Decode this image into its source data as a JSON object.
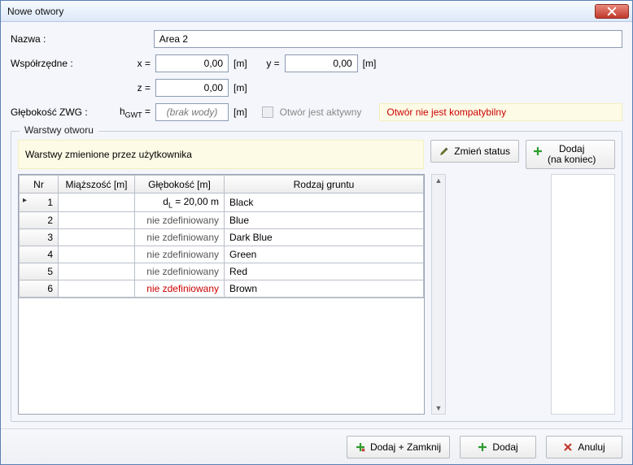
{
  "window": {
    "title": "Nowe otwory"
  },
  "labels": {
    "name": "Nazwa :",
    "coords": "Współrzędne :",
    "x_eq": "x =",
    "y_eq": "y =",
    "z_eq": "z =",
    "m": "[m]",
    "depth_zwg": "Głębokość ZWG :",
    "hgwt_eq_prefix": "h",
    "hgwt_eq_sub": "GWT",
    "hgwt_eq_suffix": " =",
    "no_water": "(brak wody)",
    "active": "Otwór jest aktywny",
    "incompat": "Otwór nie jest kompatybilny",
    "layers_legend": "Warstwy otworu",
    "user_changed": "Warstwy zmienione przez użytkownika",
    "change_status": "Zmień status",
    "add_end_1": "Dodaj",
    "add_end_2": "(na koniec)"
  },
  "inputs": {
    "name": "Area 2",
    "x": "0,00",
    "y": "0,00",
    "z": "0,00"
  },
  "table": {
    "columns": {
      "nr": "Nr",
      "thickness": "Miąższość [m]",
      "depth": "Głębokość [m]",
      "soil": "Rodzaj gruntu"
    },
    "widths": {
      "nr": 48,
      "thickness": 94,
      "depth": 110,
      "soil": 230
    },
    "undef": "nie zdefiniowany",
    "row1_depth_prefix": "d",
    "row1_depth_sub": "L",
    "row1_depth_suffix": " = 20,00 m",
    "rows": [
      {
        "nr": "1",
        "depth_mode": "dl",
        "soil": "Black",
        "selected": true
      },
      {
        "nr": "2",
        "depth_mode": "undef",
        "soil": "Blue"
      },
      {
        "nr": "3",
        "depth_mode": "undef",
        "soil": "Dark Blue"
      },
      {
        "nr": "4",
        "depth_mode": "undef",
        "soil": "Green"
      },
      {
        "nr": "5",
        "depth_mode": "undef",
        "soil": "Red"
      },
      {
        "nr": "6",
        "depth_mode": "undef_red",
        "soil": "Brown"
      }
    ]
  },
  "footer": {
    "add_close": "Dodaj + Zamknij",
    "add": "Dodaj",
    "cancel": "Anuluj"
  },
  "colors": {
    "plus_green": "#2e9b2e",
    "plus_orange": "#d98d1e",
    "x_red": "#c0392b",
    "pencil": "#6a6f2e"
  }
}
